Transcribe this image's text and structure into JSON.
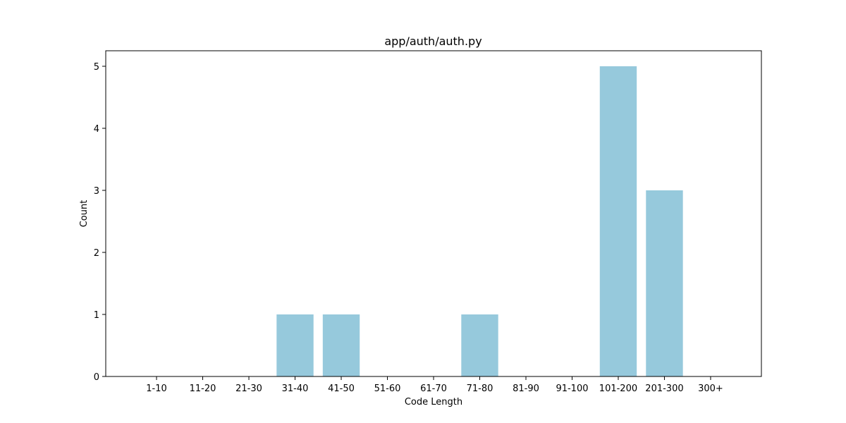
{
  "chart_data": {
    "type": "bar",
    "title": "app/auth/auth.py",
    "xlabel": "Code Length",
    "ylabel": "Count",
    "categories": [
      "1-10",
      "11-20",
      "21-30",
      "31-40",
      "41-50",
      "51-60",
      "61-70",
      "71-80",
      "81-90",
      "91-100",
      "101-200",
      "201-300",
      "300+"
    ],
    "values": [
      0,
      0,
      0,
      1,
      1,
      0,
      0,
      1,
      0,
      0,
      5,
      3,
      0
    ],
    "ylim": [
      0,
      5.25
    ],
    "yticks": [
      "0",
      "1",
      "2",
      "3",
      "4",
      "5"
    ],
    "bar_color": "#96c9dc",
    "grid": false,
    "legend": "none"
  }
}
